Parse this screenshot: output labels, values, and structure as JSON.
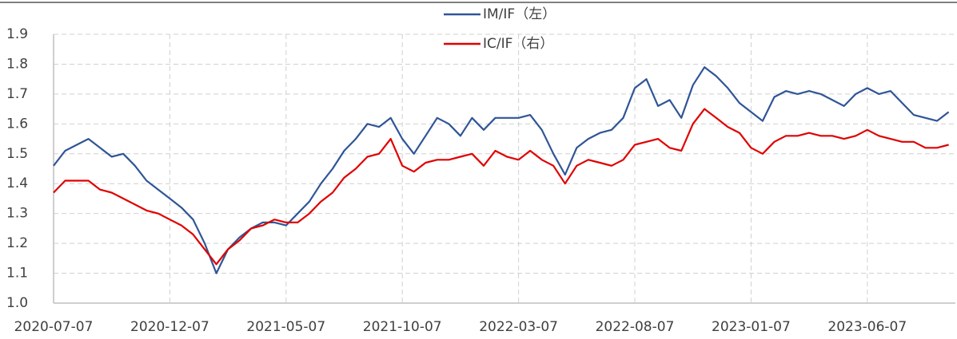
{
  "chart_data": {
    "type": "line",
    "categories": [
      "2020-07-07",
      null,
      null,
      null,
      null,
      null,
      null,
      null,
      null,
      null,
      "2020-12-07",
      null,
      null,
      null,
      null,
      null,
      null,
      null,
      null,
      null,
      "2021-05-07",
      null,
      null,
      null,
      null,
      null,
      null,
      null,
      null,
      null,
      "2021-10-07",
      null,
      null,
      null,
      null,
      null,
      null,
      null,
      null,
      null,
      "2022-03-07",
      null,
      null,
      null,
      null,
      null,
      null,
      null,
      null,
      null,
      "2022-08-07",
      null,
      null,
      null,
      null,
      null,
      null,
      null,
      null,
      null,
      "2023-01-07",
      null,
      null,
      null,
      null,
      null,
      null,
      null,
      null,
      null,
      "2023-06-07",
      null,
      null,
      null,
      null,
      null,
      null,
      null
    ],
    "series": [
      {
        "name": "IM/IF（左）",
        "color": "#2f5597",
        "values": [
          1.46,
          1.51,
          1.53,
          1.55,
          1.52,
          1.49,
          1.5,
          1.46,
          1.41,
          1.38,
          1.35,
          1.32,
          1.28,
          1.2,
          1.1,
          1.18,
          1.22,
          1.25,
          1.27,
          1.27,
          1.26,
          1.3,
          1.34,
          1.4,
          1.45,
          1.51,
          1.55,
          1.6,
          1.59,
          1.62,
          1.55,
          1.5,
          1.56,
          1.62,
          1.6,
          1.56,
          1.62,
          1.58,
          1.62,
          1.62,
          1.62,
          1.63,
          1.58,
          1.5,
          1.43,
          1.52,
          1.55,
          1.57,
          1.58,
          1.62,
          1.72,
          1.75,
          1.66,
          1.68,
          1.62,
          1.73,
          1.79,
          1.76,
          1.72,
          1.67,
          1.64,
          1.61,
          1.69,
          1.71,
          1.7,
          1.71,
          1.7,
          1.68,
          1.66,
          1.7,
          1.72,
          1.7,
          1.71,
          1.67,
          1.63,
          1.62,
          1.61,
          1.64
        ]
      },
      {
        "name": "IC/IF（右）",
        "color": "#e00000",
        "values": [
          1.37,
          1.41,
          1.41,
          1.41,
          1.38,
          1.37,
          1.35,
          1.33,
          1.31,
          1.3,
          1.28,
          1.26,
          1.23,
          1.18,
          1.13,
          1.18,
          1.21,
          1.25,
          1.26,
          1.28,
          1.27,
          1.27,
          1.3,
          1.34,
          1.37,
          1.42,
          1.45,
          1.49,
          1.5,
          1.55,
          1.46,
          1.44,
          1.47,
          1.48,
          1.48,
          1.49,
          1.5,
          1.46,
          1.51,
          1.49,
          1.48,
          1.51,
          1.48,
          1.46,
          1.4,
          1.46,
          1.48,
          1.47,
          1.46,
          1.48,
          1.53,
          1.54,
          1.55,
          1.52,
          1.51,
          1.6,
          1.65,
          1.62,
          1.59,
          1.57,
          1.52,
          1.5,
          1.54,
          1.56,
          1.56,
          1.57,
          1.56,
          1.56,
          1.55,
          1.56,
          1.58,
          1.56,
          1.55,
          1.54,
          1.54,
          1.52,
          1.52,
          1.53
        ]
      }
    ],
    "ylim": [
      1,
      1.9
    ],
    "yticks": [
      {
        "value": 1,
        "label": "1.0"
      },
      1.1,
      1.2,
      1.3,
      1.4,
      1.5,
      1.6,
      1.7,
      1.8,
      1.9
    ],
    "grid": true
  }
}
